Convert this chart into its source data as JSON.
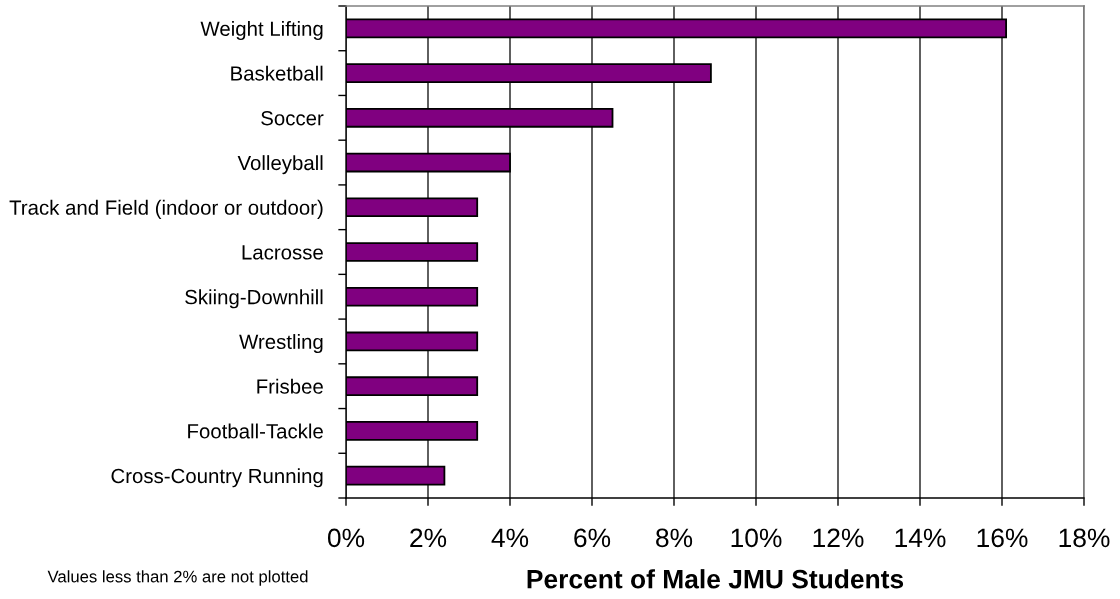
{
  "chart_data": {
    "type": "bar",
    "orientation": "horizontal",
    "categories": [
      "Weight Lifting",
      "Basketball",
      "Soccer",
      "Volleyball",
      "Track and Field (indoor or outdoor)",
      "Lacrosse",
      "Skiing-Downhill",
      "Wrestling",
      "Frisbee",
      "Football-Tackle",
      "Cross-Country Running"
    ],
    "values": [
      16.1,
      8.9,
      6.5,
      4.0,
      3.2,
      3.2,
      3.2,
      3.2,
      3.2,
      3.2,
      2.4
    ],
    "color": "#800080",
    "xlabel": "Percent of Male JMU Students",
    "xlim": [
      0,
      18
    ],
    "xticks": [
      {
        "value": 0,
        "label": "0%"
      },
      {
        "value": 2,
        "label": "2%"
      },
      {
        "value": 4,
        "label": "4%"
      },
      {
        "value": 6,
        "label": "6%"
      },
      {
        "value": 8,
        "label": "8%"
      },
      {
        "value": 10,
        "label": "10%"
      },
      {
        "value": 12,
        "label": "12%"
      },
      {
        "value": 14,
        "label": "14%"
      },
      {
        "value": 16,
        "label": "16%"
      },
      {
        "value": 18,
        "label": "18%"
      }
    ],
    "grid": "x",
    "annotations": [
      "Values less than 2% are not plotted"
    ]
  }
}
